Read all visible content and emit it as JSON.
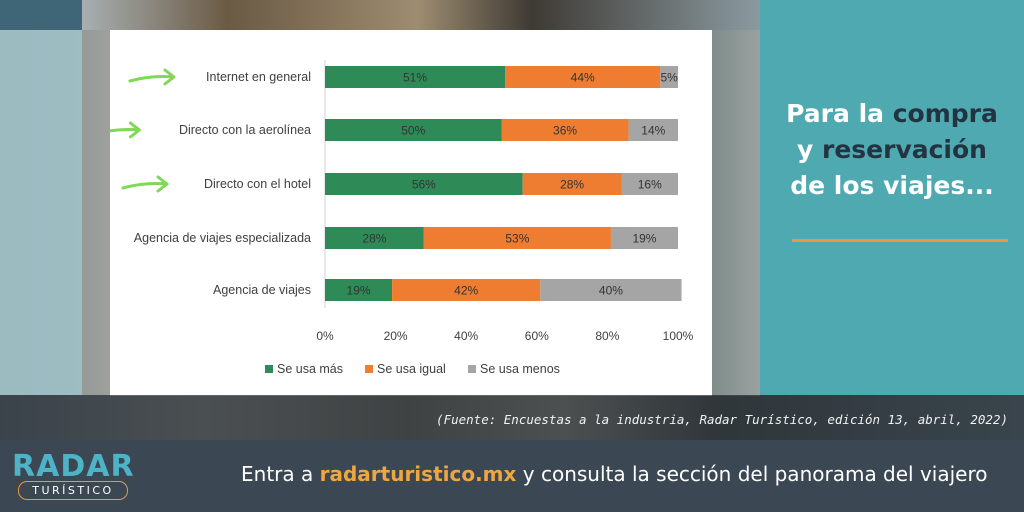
{
  "headline": {
    "line1_a": "Para la ",
    "line1_b": "compra",
    "line2_a": "y ",
    "line2_b": "reservación",
    "line3": "de los viajes..."
  },
  "source": "(Fuente: Encuestas a la industria, Radar Turístico, edición 13, abril, 2022)",
  "footer": {
    "cta_prefix": "Entra a ",
    "cta_site": "radarturistico.mx",
    "cta_suffix": " y consulta la sección del panorama del viajero",
    "logo_top": "RADAR",
    "logo_bottom": "TURÍSTICO"
  },
  "colors": {
    "mas": "#2e8b57",
    "igual": "#ee7d31",
    "menos": "#a5a5a5",
    "arrow": "#7ed957",
    "teal": "#4ea9b1",
    "accent_orange": "#e99a3c"
  },
  "chart_data": {
    "type": "bar",
    "orientation": "horizontal",
    "stacked": true,
    "categories": [
      "Internet en general",
      "Directo con la aerolínea",
      "Directo con el hotel",
      "Agencia de viajes especializada",
      "Agencia de viajes"
    ],
    "highlighted": [
      "Internet en general",
      "Directo con la aerolínea",
      "Directo con el hotel"
    ],
    "series": [
      {
        "name": "Se usa más",
        "values": [
          51,
          50,
          56,
          28,
          19
        ]
      },
      {
        "name": "Se usa igual",
        "values": [
          44,
          36,
          28,
          53,
          42
        ]
      },
      {
        "name": "Se usa menos",
        "values": [
          5,
          14,
          16,
          19,
          40
        ]
      }
    ],
    "xlim": [
      0,
      100
    ],
    "xticks": [
      "0%",
      "20%",
      "40%",
      "60%",
      "80%",
      "100%"
    ],
    "legend_position": "bottom",
    "grid": false
  }
}
